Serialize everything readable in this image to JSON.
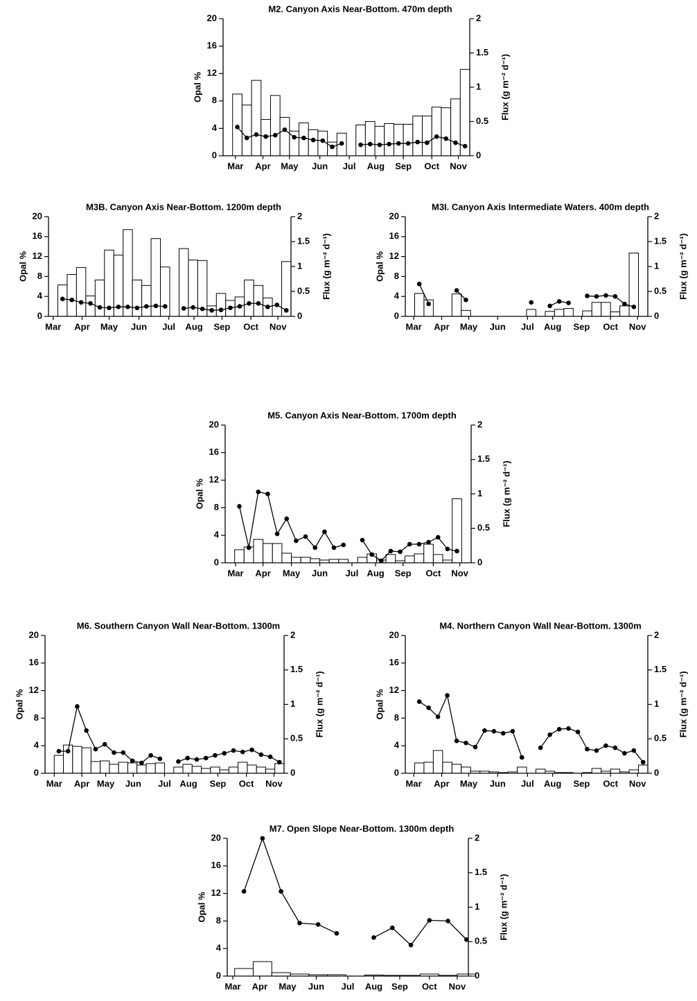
{
  "chart_data": [
    {
      "type": "bar_line",
      "title": "M2. Canyon Axis Near-Bottom. 470m depth",
      "ylabel": "Opal %",
      "y2label": "Flux (g m⁻² d⁻¹)",
      "xlim": [
        0,
        26
      ],
      "xticks": [
        {
          "value": 1.3,
          "label": "Mar"
        },
        {
          "value": 4.2,
          "label": "Apr"
        },
        {
          "value": 7,
          "label": "May"
        },
        {
          "value": 10.2,
          "label": "Jun"
        },
        {
          "value": 13.3,
          "label": "Jul"
        },
        {
          "value": 16.1,
          "label": "Aug"
        },
        {
          "value": 19,
          "label": "Sep"
        },
        {
          "value": 22,
          "label": "Oct"
        },
        {
          "value": 24.8,
          "label": "Nov"
        }
      ],
      "ylim": [
        0,
        20
      ],
      "yticks": [
        0,
        4,
        8,
        12,
        16,
        20
      ],
      "y2lim": [
        0,
        2
      ],
      "y2ticks": [
        0,
        0.5,
        1,
        1.5,
        2
      ],
      "series": [
        {
          "type": "bar",
          "color": "#ffffff",
          "values": [
            null,
            9,
            7.4,
            11,
            5.3,
            8.8,
            5.6,
            3.6,
            4.8,
            3.8,
            3.6,
            2.0,
            3.3,
            null,
            4.5,
            5.0,
            4.3,
            4.7,
            4.6,
            4.6,
            5.8,
            5.8,
            7.1,
            7.0,
            8.3,
            12.6
          ]
        },
        {
          "type": "line",
          "axis": "y2",
          "color": "#000000",
          "values": [
            null,
            0.42,
            0.26,
            0.31,
            0.28,
            0.3,
            0.38,
            0.27,
            0.26,
            0.23,
            0.22,
            0.13,
            0.18,
            null,
            0.16,
            0.17,
            0.16,
            0.17,
            0.18,
            0.18,
            0.2,
            0.19,
            0.28,
            0.25,
            0.19,
            0.14
          ]
        }
      ]
    },
    {
      "type": "bar_line",
      "title": "M3B. Canyon Axis Near-Bottom. 1200m depth",
      "ylabel": "Opal %",
      "y2label": "Flux (g m⁻² d⁻¹)",
      "xlim": [
        0,
        26
      ],
      "xticks": [
        {
          "value": 0.5,
          "label": "Mar"
        },
        {
          "value": 3.6,
          "label": "Apr"
        },
        {
          "value": 6.5,
          "label": "May"
        },
        {
          "value": 9.7,
          "label": "Jun"
        },
        {
          "value": 12.9,
          "label": "Jul"
        },
        {
          "value": 15.6,
          "label": "Aug"
        },
        {
          "value": 18.6,
          "label": "Sep"
        },
        {
          "value": 21.7,
          "label": "Oct"
        },
        {
          "value": 24.6,
          "label": "Nov"
        }
      ],
      "ylim": [
        0,
        20
      ],
      "yticks": [
        0,
        4,
        8,
        12,
        16,
        20
      ],
      "y2lim": [
        0,
        2
      ],
      "y2ticks": [
        0,
        0.5,
        1,
        1.5,
        2
      ],
      "series": [
        {
          "type": "bar",
          "color": "#ffffff",
          "values": [
            null,
            6.3,
            8.4,
            9.8,
            4.1,
            7.3,
            13.3,
            12.3,
            17.4,
            7.3,
            6.2,
            15.6,
            9.9,
            null,
            13.6,
            11.3,
            11.2,
            2.1,
            4.6,
            3.2,
            3.9,
            7.3,
            6.2,
            3.7,
            null,
            11.0
          ]
        },
        {
          "type": "line",
          "axis": "y2",
          "color": "#000000",
          "values": [
            null,
            0.35,
            0.33,
            0.28,
            0.26,
            0.18,
            0.17,
            0.19,
            0.19,
            0.17,
            0.2,
            0.21,
            0.2,
            null,
            0.16,
            0.18,
            0.15,
            0.12,
            0.13,
            0.17,
            0.2,
            0.26,
            0.26,
            0.19,
            0.23,
            0.12
          ]
        }
      ]
    },
    {
      "type": "bar_line",
      "title": "M3I. Canyon Axis Intermediate Waters. 400m depth",
      "ylabel": "Opal %",
      "y2label": "Flux (g m⁻² d⁻¹)",
      "xlim": [
        0,
        26
      ],
      "xticks": [
        {
          "value": 0.9,
          "label": "Mar"
        },
        {
          "value": 3.9,
          "label": "Apr"
        },
        {
          "value": 6.8,
          "label": "May"
        },
        {
          "value": 9.9,
          "label": "Jun"
        },
        {
          "value": 13.1,
          "label": "Jul"
        },
        {
          "value": 15.8,
          "label": "Aug"
        },
        {
          "value": 18.9,
          "label": "Sep"
        },
        {
          "value": 22,
          "label": "Oct"
        },
        {
          "value": 24.9,
          "label": "Nov"
        }
      ],
      "ylim": [
        0,
        20
      ],
      "yticks": [
        0,
        4,
        8,
        12,
        16,
        20
      ],
      "y2lim": [
        0,
        2
      ],
      "y2ticks": [
        0,
        0.5,
        1,
        1.5,
        2
      ],
      "series": [
        {
          "type": "bar",
          "color": "#ffffff",
          "values": [
            null,
            4.6,
            3.3,
            null,
            null,
            4.5,
            1.2,
            null,
            null,
            null,
            null,
            null,
            null,
            1.4,
            null,
            1.0,
            1.4,
            1.6,
            null,
            1.1,
            2.8,
            2.8,
            0.9,
            2.1,
            12.7,
            null
          ]
        },
        {
          "type": "line",
          "axis": "y2",
          "color": "#000000",
          "values": [
            null,
            0.65,
            0.25,
            null,
            null,
            0.52,
            0.33,
            null,
            null,
            null,
            null,
            null,
            null,
            0.28,
            null,
            0.21,
            0.3,
            0.27,
            null,
            0.41,
            0.4,
            0.42,
            0.4,
            0.25,
            0.19,
            null
          ]
        }
      ]
    },
    {
      "type": "bar_line",
      "title": "M5. Canyon Axis Near-Bottom. 1700m depth",
      "ylabel": "Opal %",
      "y2label": "Flux (g m⁻² d⁻¹)",
      "xlim": [
        0,
        26
      ],
      "xticks": [
        {
          "value": 1.1,
          "label": "Mar"
        },
        {
          "value": 4,
          "label": "Apr"
        },
        {
          "value": 7,
          "label": "May"
        },
        {
          "value": 10,
          "label": "Jun"
        },
        {
          "value": 13.4,
          "label": "Jul"
        },
        {
          "value": 15.9,
          "label": "Aug"
        },
        {
          "value": 18.8,
          "label": "Sep"
        },
        {
          "value": 22,
          "label": "Oct"
        },
        {
          "value": 24.8,
          "label": "Nov"
        }
      ],
      "ylim": [
        0,
        20
      ],
      "yticks": [
        0,
        4,
        8,
        12,
        16,
        20
      ],
      "y2lim": [
        0,
        2
      ],
      "y2ticks": [
        0,
        0.5,
        1,
        1.5,
        2
      ],
      "series": [
        {
          "type": "bar",
          "color": "#ffffff",
          "values": [
            null,
            1.9,
            2.3,
            3.4,
            2.8,
            2.8,
            1.4,
            0.8,
            0.8,
            0.6,
            0.4,
            0.5,
            0.5,
            null,
            0.8,
            1.3,
            0.4,
            1.2,
            0.3,
            1.0,
            1.3,
            2.7,
            1.2,
            0.4,
            9.3,
            null
          ]
        },
        {
          "type": "line",
          "axis": "y2",
          "color": "#000000",
          "values": [
            null,
            0.82,
            0.22,
            1.03,
            1.0,
            0.42,
            0.64,
            0.32,
            0.38,
            0.22,
            0.45,
            0.22,
            0.26,
            null,
            0.33,
            0.12,
            0.03,
            0.17,
            0.16,
            0.27,
            0.27,
            0.3,
            0.37,
            0.2,
            0.17,
            null
          ]
        }
      ]
    },
    {
      "type": "bar_line",
      "title": "M6. Southern Canyon Wall Near-Bottom. 1300m",
      "ylabel": "Opal %",
      "y2label": "Flux (g m⁻² d⁻¹)",
      "xlim": [
        0,
        26
      ],
      "xticks": [
        {
          "value": 1,
          "label": "Mar"
        },
        {
          "value": 4,
          "label": "Apr"
        },
        {
          "value": 6.6,
          "label": "May"
        },
        {
          "value": 9.6,
          "label": "Jun"
        },
        {
          "value": 13,
          "label": "Jul"
        },
        {
          "value": 15.6,
          "label": "Aug"
        },
        {
          "value": 18.8,
          "label": "Sep"
        },
        {
          "value": 21.9,
          "label": "Oct"
        },
        {
          "value": 24.9,
          "label": "Nov"
        }
      ],
      "ylim": [
        0,
        20
      ],
      "yticks": [
        0,
        4,
        8,
        12,
        16,
        20
      ],
      "y2lim": [
        0,
        2
      ],
      "y2ticks": [
        0,
        0.5,
        1,
        1.5,
        2
      ],
      "series": [
        {
          "type": "bar",
          "color": "#ffffff",
          "values": [
            null,
            2.6,
            4.1,
            3.9,
            3.7,
            1.7,
            1.8,
            1.3,
            1.6,
            1.5,
            1.2,
            1.4,
            1.5,
            null,
            0.9,
            1.3,
            1.0,
            0.7,
            0.9,
            0.5,
            0.9,
            1.6,
            1.2,
            0.9,
            0.6,
            1.4
          ]
        },
        {
          "type": "line",
          "axis": "y2",
          "color": "#000000",
          "values": [
            null,
            0.32,
            0.32,
            0.97,
            0.62,
            0.35,
            0.42,
            0.3,
            0.3,
            0.18,
            0.15,
            0.26,
            0.21,
            null,
            0.17,
            0.22,
            0.2,
            0.22,
            0.26,
            0.29,
            0.33,
            0.31,
            0.34,
            0.27,
            0.24,
            0.16
          ]
        }
      ]
    },
    {
      "type": "bar_line",
      "title": "M4. Northern Canyon Wall Near-Bottom. 1300m",
      "ylabel": "Opal %",
      "y2label": "Flux (g m⁻² d⁻¹)",
      "xlim": [
        0,
        26
      ],
      "xticks": [
        {
          "value": 0.9,
          "label": "Mar"
        },
        {
          "value": 3.9,
          "label": "Apr"
        },
        {
          "value": 6.8,
          "label": "May"
        },
        {
          "value": 9.9,
          "label": "Jun"
        },
        {
          "value": 13.1,
          "label": "Jul"
        },
        {
          "value": 15.8,
          "label": "Aug"
        },
        {
          "value": 18.9,
          "label": "Sep"
        },
        {
          "value": 22,
          "label": "Oct"
        },
        {
          "value": 24.9,
          "label": "Nov"
        }
      ],
      "ylim": [
        0,
        20
      ],
      "yticks": [
        0,
        4,
        8,
        12,
        16,
        20
      ],
      "y2lim": [
        0,
        2
      ],
      "y2ticks": [
        0,
        0.5,
        1,
        1.5,
        2
      ],
      "series": [
        {
          "type": "bar",
          "color": "#ffffff",
          "values": [
            null,
            1.5,
            1.6,
            3.3,
            1.6,
            1.3,
            0.9,
            0.3,
            0.3,
            0.2,
            0.1,
            0.2,
            0.9,
            null,
            0.6,
            0.3,
            0.1,
            0.1,
            0,
            0.1,
            0.7,
            0.3,
            0.6,
            0.2,
            0.5,
            1.2
          ]
        },
        {
          "type": "line",
          "axis": "y2",
          "color": "#000000",
          "values": [
            null,
            1.04,
            0.95,
            0.82,
            1.13,
            0.47,
            0.44,
            0.38,
            0.62,
            0.61,
            0.58,
            0.61,
            0.23,
            null,
            0.37,
            0.56,
            0.64,
            0.65,
            0.6,
            0.35,
            0.33,
            0.4,
            0.37,
            0.29,
            0.33,
            0.16
          ]
        }
      ]
    },
    {
      "type": "bar_line",
      "title": "M7. Open Slope Near-Bottom. 1300m depth",
      "ylabel": "Opal %",
      "y2label": "Flux (g m⁻² d⁻¹)",
      "xlim": [
        -0.4,
        12.6
      ],
      "xticks": [
        {
          "value": -0.1,
          "label": "Mar"
        },
        {
          "value": 1.35,
          "label": "Apr"
        },
        {
          "value": 2.85,
          "label": "May"
        },
        {
          "value": 4.4,
          "label": "Jun"
        },
        {
          "value": 6.1,
          "label": "Jul"
        },
        {
          "value": 7.5,
          "label": "Aug"
        },
        {
          "value": 8.9,
          "label": "Sep"
        },
        {
          "value": 10.5,
          "label": "Oct"
        },
        {
          "value": 12,
          "label": "Nov"
        }
      ],
      "ylim": [
        0,
        20
      ],
      "yticks": [
        0,
        4,
        8,
        12,
        16,
        20
      ],
      "y2lim": [
        0,
        2
      ],
      "y2ticks": [
        0,
        0.5,
        1,
        1.5,
        2
      ],
      "series": [
        {
          "type": "bar",
          "color": "#ffffff",
          "values": [
            1.1,
            2.1,
            0.5,
            0.3,
            0.2,
            0.2,
            null,
            0.15,
            0.1,
            0.1,
            0.3,
            0.1,
            0.3
          ]
        },
        {
          "type": "line",
          "axis": "y2",
          "color": "#000000",
          "values": [
            1.23,
            2.0,
            1.23,
            0.77,
            0.75,
            0.62,
            null,
            0.56,
            0.7,
            0.45,
            0.81,
            0.8,
            0.53
          ]
        }
      ]
    }
  ]
}
